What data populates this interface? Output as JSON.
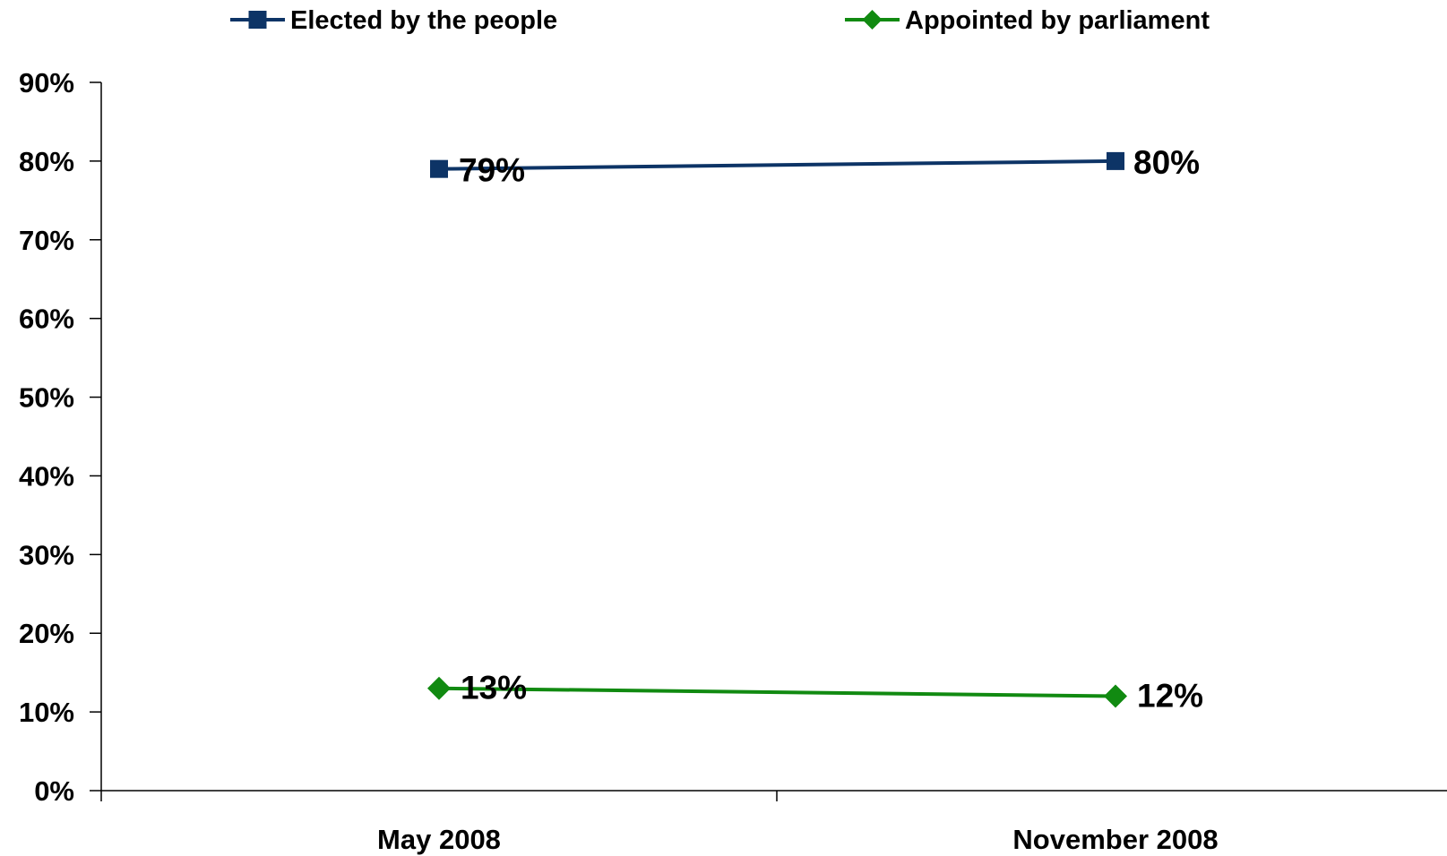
{
  "chart_data": {
    "type": "line",
    "categories": [
      "May 2008",
      "November 2008"
    ],
    "series": [
      {
        "name": "Elected by the people",
        "values": [
          79,
          80
        ],
        "labels": [
          "79%",
          "80%"
        ],
        "color": "#0d3466",
        "marker": "square"
      },
      {
        "name": "Appointed by parliament",
        "values": [
          13,
          12
        ],
        "labels": [
          "13%",
          "12%"
        ],
        "color": "#118a11",
        "marker": "diamond"
      }
    ],
    "ylim": [
      0,
      90
    ],
    "yticks": [
      0,
      10,
      20,
      30,
      40,
      50,
      60,
      70,
      80,
      90
    ],
    "ytick_labels": [
      "0%",
      "10%",
      "20%",
      "30%",
      "40%",
      "50%",
      "60%",
      "70%",
      "80%",
      "90%"
    ],
    "legend_position": "top",
    "grid": false
  }
}
